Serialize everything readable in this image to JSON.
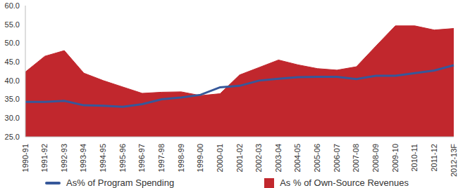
{
  "chart_data": {
    "type": "line",
    "categories": [
      "1990-91",
      "1991-92",
      "1992-93",
      "1993-94",
      "1994-95",
      "1995-96",
      "1996-97",
      "1997-98",
      "1998-99",
      "1999-00",
      "2000-01",
      "2001-02",
      "2002-03",
      "2003-04",
      "2004-05",
      "2005-06",
      "2006-07",
      "2007-08",
      "2008-09",
      "2009-10",
      "2010-11",
      "2011-12",
      "2012-13F"
    ],
    "series": [
      {
        "name": "As% of Program Spending",
        "type": "line",
        "color": "#36589a",
        "values": [
          34.3,
          34.3,
          34.6,
          33.4,
          33.3,
          33.0,
          33.7,
          35.0,
          35.5,
          36.2,
          38.2,
          38.6,
          40.0,
          40.5,
          40.9,
          41.0,
          41.0,
          40.4,
          41.3,
          41.3,
          42.0,
          42.7,
          44.1
        ]
      },
      {
        "name": "As % of Own-Source Revenues",
        "type": "area",
        "color": "#c1272d",
        "values": [
          42.3,
          46.5,
          48.0,
          42.0,
          40.0,
          38.3,
          36.6,
          36.9,
          37.0,
          36.0,
          36.5,
          41.5,
          43.5,
          45.5,
          44.2,
          43.2,
          42.8,
          43.7,
          49.2,
          54.6,
          54.6,
          53.5,
          53.9
        ]
      }
    ],
    "ylim": [
      25,
      60
    ],
    "yticks": [
      {
        "value": 25,
        "label": "25.0"
      },
      {
        "value": 30,
        "label": "30.0"
      },
      {
        "value": 35,
        "label": "35.0"
      },
      {
        "value": 40,
        "label": "40.0"
      },
      {
        "value": 45,
        "label": "45.0"
      },
      {
        "value": 50,
        "label": "50.0"
      },
      {
        "value": 55,
        "label": "55.0"
      },
      {
        "value": 60,
        "label": "60.0"
      }
    ],
    "legend": "bottom"
  }
}
